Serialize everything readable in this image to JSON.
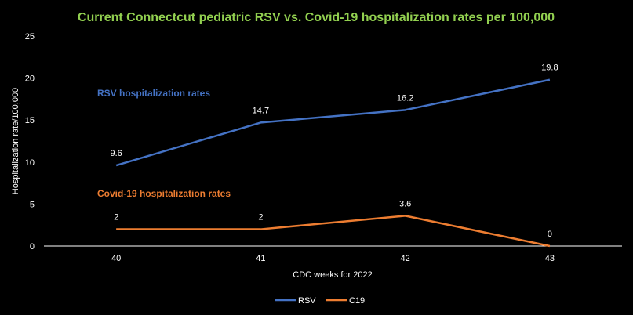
{
  "chart_data": {
    "type": "line",
    "title": "Current Connectcut pediatric RSV vs. Covid-19 hospitalization rates per 100,000",
    "xlabel": "CDC weeks for 2022",
    "ylabel": "Hospitalization rate/100,000",
    "categories": [
      "40",
      "41",
      "42",
      "43"
    ],
    "ylim": [
      0,
      25
    ],
    "yticks": [
      0,
      5,
      10,
      15,
      20,
      25
    ],
    "grid": false,
    "legend_position": "bottom",
    "series": [
      {
        "name": "RSV",
        "values": [
          9.6,
          14.7,
          16.2,
          19.8
        ],
        "labels": [
          "9.6",
          "14.7",
          "16.2",
          "19.8"
        ],
        "annotation": "RSV hospitalization rates"
      },
      {
        "name": "C19",
        "values": [
          2,
          2,
          3.6,
          0
        ],
        "labels": [
          "2",
          "2",
          "3.6",
          "0"
        ],
        "annotation": "Covid-19  hospitalization rates"
      }
    ]
  },
  "colors": {
    "title": "#92d050",
    "rsv": "#4472c4",
    "c19": "#ed7d31",
    "axis": "#ffffff",
    "background": "#000000"
  }
}
